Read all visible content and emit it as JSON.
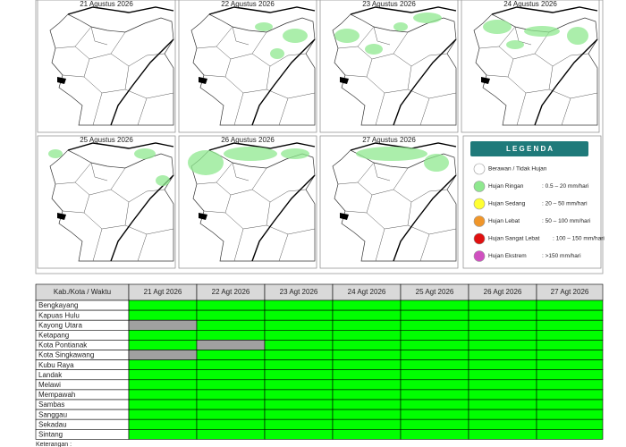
{
  "panels": [
    "21 Agustus 2026",
    "22 Agustus 2026",
    "23 Agustus 2026",
    "24 Agustus 2026",
    "25 Agustus 2026",
    "26 Agustus 2026",
    "27 Agustus 2026"
  ],
  "legend": {
    "title": "L E G E N D A",
    "items": [
      {
        "label": "Berawan / Tidak Hujan",
        "range": null,
        "color": "#ffffff"
      },
      {
        "label": "Hujan Ringan",
        "range": ": 0.5 – 20 mm/hari",
        "color": "#8fe88f"
      },
      {
        "label": "Hujan Sedang",
        "range": ": 20 – 50 mm/hari",
        "color": "#ffff33"
      },
      {
        "label": "Hujan Lebat",
        "range": ": 50 – 100 mm/hari",
        "color": "#f0962a"
      },
      {
        "label": "Hujan Sangat Lebat",
        "range": ": 100 – 150 mm/hari",
        "color": "#e01010"
      },
      {
        "label": "Hujan Ekstrem",
        "range": ": >150 mm/hari",
        "color": "#d050c0"
      }
    ]
  },
  "table": {
    "header": [
      "Kab./Kota / Waktu",
      "21 Agt 2026",
      "22 Agt 2026",
      "23 Agt 2026",
      "24 Agt 2026",
      "25 Agt 2026",
      "26 Agt 2026",
      "27 Agt 2026"
    ],
    "rows": [
      "Bengkayang",
      "Kapuas Hulu",
      "Kayong Utara",
      "Ketapang",
      "Kota Pontianak",
      "Kota Singkawang",
      "Kubu Raya",
      "Landak",
      "Melawi",
      "Mempawah",
      "Sambas",
      "Sanggau",
      "Sekadau",
      "Sintang"
    ],
    "cell_colors": [
      [
        "#00ff00",
        "#00ff00",
        "#00ff00",
        "#00ff00",
        "#00ff00",
        "#00ff00",
        "#00ff00"
      ],
      [
        "#00ff00",
        "#00ff00",
        "#00ff00",
        "#00ff00",
        "#00ff00",
        "#00ff00",
        "#00ff00"
      ],
      [
        "#a0a0a0",
        "#00ff00",
        "#00ff00",
        "#00ff00",
        "#00ff00",
        "#00ff00",
        "#00ff00"
      ],
      [
        "#00ff00",
        "#00ff00",
        "#00ff00",
        "#00ff00",
        "#00ff00",
        "#00ff00",
        "#00ff00"
      ],
      [
        "#00ff00",
        "#a0a0a0",
        "#00ff00",
        "#00ff00",
        "#00ff00",
        "#00ff00",
        "#00ff00"
      ],
      [
        "#a0a0a0",
        "#00ff00",
        "#00ff00",
        "#00ff00",
        "#00ff00",
        "#00ff00",
        "#00ff00"
      ],
      [
        "#00ff00",
        "#00ff00",
        "#00ff00",
        "#00ff00",
        "#00ff00",
        "#00ff00",
        "#00ff00"
      ],
      [
        "#00ff00",
        "#00ff00",
        "#00ff00",
        "#00ff00",
        "#00ff00",
        "#00ff00",
        "#00ff00"
      ],
      [
        "#00ff00",
        "#00ff00",
        "#00ff00",
        "#00ff00",
        "#00ff00",
        "#00ff00",
        "#00ff00"
      ],
      [
        "#00ff00",
        "#00ff00",
        "#00ff00",
        "#00ff00",
        "#00ff00",
        "#00ff00",
        "#00ff00"
      ],
      [
        "#00ff00",
        "#00ff00",
        "#00ff00",
        "#00ff00",
        "#00ff00",
        "#00ff00",
        "#00ff00"
      ],
      [
        "#00ff00",
        "#00ff00",
        "#00ff00",
        "#00ff00",
        "#00ff00",
        "#00ff00",
        "#00ff00"
      ],
      [
        "#00ff00",
        "#00ff00",
        "#00ff00",
        "#00ff00",
        "#00ff00",
        "#00ff00",
        "#00ff00"
      ],
      [
        "#00ff00",
        "#00ff00",
        "#00ff00",
        "#00ff00",
        "#00ff00",
        "#00ff00",
        "#00ff00"
      ]
    ]
  },
  "footer": "Keterangan :"
}
